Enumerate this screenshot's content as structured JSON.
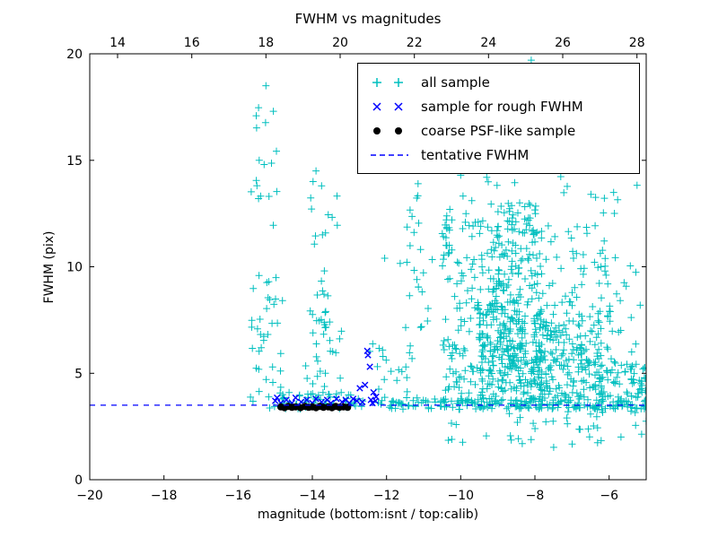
{
  "chart_data": {
    "type": "scatter",
    "title": "FWHM vs magnitudes",
    "xlabel": "magnitude (bottom:isnt / top:calib)",
    "ylabel": "FWHM (pix)",
    "xlim": [
      -20,
      -5
    ],
    "top_xlim": [
      13.25,
      28.25
    ],
    "ylim": [
      0,
      20
    ],
    "x_ticks": [
      -20,
      -18,
      -16,
      -14,
      -12,
      -10,
      -8,
      -6
    ],
    "top_x_ticks": [
      14,
      16,
      18,
      20,
      22,
      24,
      26,
      28
    ],
    "y_ticks": [
      0,
      5,
      10,
      15,
      20
    ],
    "grid": false,
    "legend_position": "upper right",
    "seed": 42,
    "tentative_fwhm": 3.5,
    "colors": {
      "frame": "#000000",
      "text": "#000000",
      "background": "#ffffff"
    },
    "series": [
      {
        "name": "all sample",
        "marker": "plus",
        "color": "#00bfbf",
        "points": [
          [
            -15.25,
            18.5
          ],
          [
            -15.05,
            17.3
          ],
          [
            -15.3,
            14.8
          ],
          [
            -15.45,
            13.2
          ],
          [
            -8.1,
            19.7
          ],
          [
            -7.6,
            18.8
          ],
          [
            -13.9,
            14.5
          ],
          [
            -13.75,
            13.8
          ],
          [
            -11.15,
            13.9
          ],
          [
            -9.3,
            14.2
          ],
          [
            -8.6,
            14.6
          ],
          [
            -10.0,
            14.3
          ],
          [
            -9.0,
            15.1
          ],
          [
            -12.05,
            10.4
          ]
        ],
        "clusters": [
          {
            "n": 18,
            "x": [
              -15.65,
              -14.85
            ],
            "y": [
              9.0,
              18.6
            ]
          },
          {
            "n": 32,
            "x": [
              -15.7,
              -14.8
            ],
            "y": [
              3.6,
              9.0
            ]
          },
          {
            "n": 60,
            "x": [
              -15.2,
              -12.6
            ],
            "y": [
              3.3,
              4.1
            ]
          },
          {
            "n": 25,
            "x": [
              -14.1,
              -13.3
            ],
            "y": [
              4.0,
              14.6
            ]
          },
          {
            "n": 25,
            "x": [
              -14.2,
              -13.2
            ],
            "y": [
              3.6,
              8.0
            ]
          },
          {
            "n": 12,
            "x": [
              -12.6,
              -11.8
            ],
            "y": [
              3.4,
              6.5
            ]
          },
          {
            "n": 25,
            "x": [
              -11.5,
              -11.0
            ],
            "y": [
              3.5,
              14.2
            ]
          },
          {
            "n": 10,
            "x": [
              -11.9,
              -10.6
            ],
            "y": [
              4.0,
              12.0
            ]
          },
          {
            "n": 300,
            "x": [
              -9.5,
              -7.8
            ],
            "y": [
              3.4,
              8.0
            ]
          },
          {
            "n": 150,
            "x": [
              -9.3,
              -7.9
            ],
            "y": [
              8.0,
              13.0
            ]
          },
          {
            "n": 120,
            "x": [
              -10.5,
              -9.4
            ],
            "y": [
              3.4,
              12.5
            ]
          },
          {
            "n": 200,
            "x": [
              -7.9,
              -6.2
            ],
            "y": [
              3.3,
              7.5
            ]
          },
          {
            "n": 60,
            "x": [
              -7.9,
              -6.0
            ],
            "y": [
              7.5,
              12.0
            ]
          },
          {
            "n": 80,
            "x": [
              -6.3,
              -5.0
            ],
            "y": [
              3.2,
              5.5
            ]
          },
          {
            "n": 25,
            "x": [
              -6.2,
              -5.0
            ],
            "y": [
              5.5,
              10.5
            ]
          },
          {
            "n": 150,
            "x": [
              -12.2,
              -5.0
            ],
            "y": [
              3.3,
              3.8
            ]
          },
          {
            "n": 40,
            "x": [
              -10.5,
              -5.0
            ],
            "y": [
              1.5,
              3.2
            ]
          },
          {
            "n": 25,
            "x": [
              -10.3,
              -5.2
            ],
            "y": [
              12.5,
              15.5
            ]
          }
        ]
      },
      {
        "name": "sample for rough FWHM",
        "marker": "x",
        "color": "#0000ff",
        "points": [
          [
            -15.0,
            3.7
          ],
          [
            -14.95,
            3.85
          ],
          [
            -14.85,
            3.6
          ],
          [
            -14.7,
            3.75
          ],
          [
            -14.55,
            3.6
          ],
          [
            -14.45,
            3.85
          ],
          [
            -14.3,
            3.65
          ],
          [
            -14.15,
            3.75
          ],
          [
            -14.0,
            3.6
          ],
          [
            -13.9,
            3.8
          ],
          [
            -13.75,
            3.65
          ],
          [
            -13.6,
            3.75
          ],
          [
            -13.5,
            3.6
          ],
          [
            -13.35,
            3.8
          ],
          [
            -13.2,
            3.65
          ],
          [
            -13.1,
            3.75
          ],
          [
            -13.0,
            3.6
          ],
          [
            -12.9,
            3.8
          ],
          [
            -12.8,
            3.7
          ],
          [
            -12.72,
            4.3
          ],
          [
            -12.65,
            3.65
          ],
          [
            -12.58,
            4.45
          ],
          [
            -12.52,
            6.05
          ],
          [
            -12.5,
            5.85
          ],
          [
            -12.45,
            5.3
          ],
          [
            -12.42,
            3.75
          ],
          [
            -12.38,
            3.6
          ],
          [
            -12.35,
            4.1
          ],
          [
            -12.3,
            3.7
          ],
          [
            -12.28,
            3.9
          ]
        ]
      },
      {
        "name": "coarse PSF-like sample",
        "marker": "dot",
        "color": "#000000",
        "points": [
          [
            -14.85,
            3.42
          ],
          [
            -14.75,
            3.38
          ],
          [
            -14.65,
            3.44
          ],
          [
            -14.55,
            3.4
          ],
          [
            -14.45,
            3.42
          ],
          [
            -14.32,
            3.38
          ],
          [
            -14.2,
            3.44
          ],
          [
            -14.1,
            3.4
          ],
          [
            -14.0,
            3.42
          ],
          [
            -13.9,
            3.38
          ],
          [
            -13.8,
            3.44
          ],
          [
            -13.7,
            3.4
          ],
          [
            -13.57,
            3.42
          ],
          [
            -13.47,
            3.38
          ],
          [
            -13.37,
            3.44
          ],
          [
            -13.27,
            3.4
          ],
          [
            -13.16,
            3.42
          ],
          [
            -13.05,
            3.4
          ]
        ]
      },
      {
        "name": "tentative FWHM",
        "type": "hline",
        "linestyle": "dashed",
        "color": "#0000ff",
        "y": 3.5
      }
    ]
  }
}
